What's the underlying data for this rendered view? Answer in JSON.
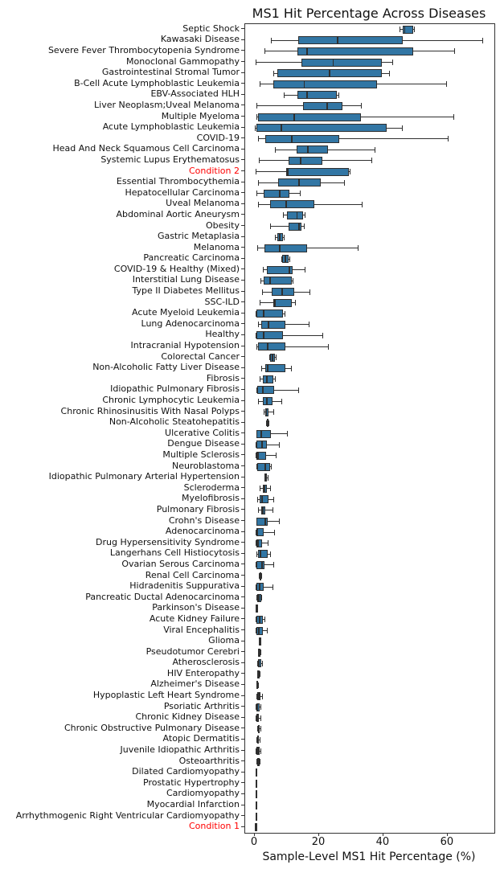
{
  "chart_data": {
    "type": "boxplot-horizontal",
    "title": "MS1 Hit Percentage Across Diseases",
    "xlabel": "Sample-Level MS1 Hit Percentage (%)",
    "x_ticks": [
      0,
      20,
      40,
      60
    ],
    "xlim": [
      -3,
      74.4
    ],
    "grid": false,
    "legend": "none",
    "colors": {
      "box_fill": "#3276a4",
      "box_edge": "#2f2f2f",
      "highlight_label": "#ff0000",
      "label": "#111111"
    },
    "rows": [
      {
        "label": "Septic Shock",
        "whislo": 45.0,
        "q1": 45.9,
        "med": 46.6,
        "q3": 49.3,
        "whishi": 49.5
      },
      {
        "label": "Kawasaki Disease",
        "whislo": 5.0,
        "q1": 13.6,
        "med": 25.8,
        "q3": 46.0,
        "whishi": 70.7
      },
      {
        "label": "Severe Fever Thrombocytopenia Syndrome",
        "whislo": 3.0,
        "q1": 13.3,
        "med": 16.2,
        "q3": 49.2,
        "whishi": 62.0
      },
      {
        "label": "Monoclonal Gammopathy",
        "whislo": 0.3,
        "q1": 14.6,
        "med": 24.4,
        "q3": 39.5,
        "whishi": 42.8
      },
      {
        "label": "Gastrointestinal Stromal Tumor",
        "whislo": 5.7,
        "q1": 6.9,
        "med": 23.3,
        "q3": 39.5,
        "whishi": 41.8
      },
      {
        "label": "B-Cell Acute Lymphoblastic Leukemia",
        "whislo": 1.6,
        "q1": 5.8,
        "med": 15.4,
        "q3": 38.0,
        "whishi": 59.5
      },
      {
        "label": "EBV-Associated HLH",
        "whislo": 9.0,
        "q1": 13.2,
        "med": 16.3,
        "q3": 25.4,
        "whishi": 26.0
      },
      {
        "label": "Liver Neoplasm;Uveal Melanoma",
        "whislo": 0.5,
        "q1": 15.1,
        "med": 22.5,
        "q3": 27.3,
        "whishi": 33.0
      },
      {
        "label": "Multiple Myeloma",
        "whislo": 0.5,
        "q1": 1.0,
        "med": 12.2,
        "q3": 33.0,
        "whishi": 61.8
      },
      {
        "label": "Acute Lymphoblastic Leukemia",
        "whislo": 0.1,
        "q1": 0.5,
        "med": 8.2,
        "q3": 41.0,
        "whishi": 45.7
      },
      {
        "label": "COVID-19",
        "whislo": 1.0,
        "q1": 3.3,
        "med": 11.5,
        "q3": 26.3,
        "whishi": 60.0
      },
      {
        "label": "Head And Neck Squamous Cell Carcinoma",
        "whislo": 6.3,
        "q1": 13.0,
        "med": 16.5,
        "q3": 22.8,
        "whishi": 37.3
      },
      {
        "label": "Systemic Lupus Erythematosus",
        "whislo": 1.3,
        "q1": 10.5,
        "med": 14.3,
        "q3": 21.0,
        "whishi": 36.2
      },
      {
        "label": "Condition 2",
        "whislo": 0.3,
        "q1": 9.8,
        "med": 10.3,
        "q3": 29.3,
        "whishi": 29.6,
        "highlight": true
      },
      {
        "label": "Essential Thrombocythemia",
        "whislo": 1.0,
        "q1": 7.2,
        "med": 13.8,
        "q3": 20.5,
        "whishi": 27.8
      },
      {
        "label": "Hepatocellular Carcinoma",
        "whislo": 0.5,
        "q1": 2.7,
        "med": 7.8,
        "q3": 10.7,
        "whishi": 14.0
      },
      {
        "label": "Uveal Melanoma",
        "whislo": 1.0,
        "q1": 4.8,
        "med": 9.8,
        "q3": 18.5,
        "whishi": 33.3
      },
      {
        "label": "Abdominal Aortic Aneurysm",
        "whislo": 8.7,
        "q1": 10.0,
        "med": 13.1,
        "q3": 15.0,
        "whishi": 15.5
      },
      {
        "label": "Obesity",
        "whislo": 4.8,
        "q1": 10.6,
        "med": 13.7,
        "q3": 14.5,
        "whishi": 15.3
      },
      {
        "label": "Gastric Metaplasia",
        "whislo": 6.2,
        "q1": 7.0,
        "med": 7.8,
        "q3": 8.8,
        "whishi": 9.1
      },
      {
        "label": "Melanoma",
        "whislo": 0.7,
        "q1": 3.0,
        "med": 7.8,
        "q3": 16.3,
        "whishi": 32.0
      },
      {
        "label": "Pancreatic Carcinoma",
        "whislo": 8.3,
        "q1": 8.6,
        "med": 9.5,
        "q3": 10.5,
        "whishi": 10.7
      },
      {
        "label": "COVID-19 & Healthy (Mixed)",
        "whislo": 2.5,
        "q1": 3.8,
        "med": 10.7,
        "q3": 11.8,
        "whishi": 15.5
      },
      {
        "label": "Interstitial Lung Disease",
        "whislo": 1.8,
        "q1": 2.8,
        "med": 4.8,
        "q3": 11.5,
        "whishi": 11.7
      },
      {
        "label": "Type II Diabetes Mellitus",
        "whislo": 2.2,
        "q1": 5.2,
        "med": 8.5,
        "q3": 12.2,
        "whishi": 17.1
      },
      {
        "label": "SSC-ILD",
        "whislo": 1.4,
        "q1": 5.8,
        "med": 6.3,
        "q3": 11.4,
        "whishi": 12.5
      },
      {
        "label": "Acute Myeloid Leukemia",
        "whislo": 0.2,
        "q1": 0.4,
        "med": 2.8,
        "q3": 8.7,
        "whishi": 9.2
      },
      {
        "label": "Lung Adenocarcinoma",
        "whislo": 1.0,
        "q1": 2.0,
        "med": 4.2,
        "q3": 9.5,
        "whishi": 16.8
      },
      {
        "label": "Healthy",
        "whislo": 0.2,
        "q1": 0.6,
        "med": 2.8,
        "q3": 8.8,
        "whishi": 21.0
      },
      {
        "label": "Intracranial Hypotension",
        "whislo": 0.5,
        "q1": 1.0,
        "med": 4.0,
        "q3": 9.5,
        "whishi": 22.8
      },
      {
        "label": "Colorectal Cancer",
        "whislo": 4.4,
        "q1": 4.8,
        "med": 5.5,
        "q3": 6.3,
        "whishi": 6.6
      },
      {
        "label": "Non-Alcoholic Fatty Liver Disease",
        "whislo": 2.0,
        "q1": 3.2,
        "med": 4.0,
        "q3": 9.5,
        "whishi": 11.3
      },
      {
        "label": "Fibrosis",
        "whislo": 1.5,
        "q1": 2.5,
        "med": 3.8,
        "q3": 5.8,
        "whishi": 6.2
      },
      {
        "label": "Idiopathic Pulmonary Fibrosis",
        "whislo": 0.5,
        "q1": 0.7,
        "med": 2.5,
        "q3": 6.0,
        "whishi": 13.5
      },
      {
        "label": "Chronic Lymphocytic Leukemia",
        "whislo": 1.0,
        "q1": 2.5,
        "med": 3.8,
        "q3": 5.5,
        "whishi": 8.2
      },
      {
        "label": "Chronic Rhinosinusitis With Nasal Polyps",
        "whislo": 2.8,
        "q1": 3.2,
        "med": 3.6,
        "q3": 4.3,
        "whishi": 5.8
      },
      {
        "label": "Non-Alcoholic Steatohepatitis",
        "whislo": 3.6,
        "q1": 3.7,
        "med": 3.9,
        "q3": 4.2,
        "whishi": 4.3
      },
      {
        "label": "Ulcerative Colitis",
        "whislo": 0.4,
        "q1": 0.6,
        "med": 2.0,
        "q3": 5.0,
        "whishi": 10.0
      },
      {
        "label": "Dengue Disease",
        "whislo": 0.3,
        "q1": 0.5,
        "med": 2.2,
        "q3": 3.8,
        "whishi": 7.5
      },
      {
        "label": "Multiple Sclerosis",
        "whislo": 0.3,
        "q1": 0.5,
        "med": 1.0,
        "q3": 3.5,
        "whishi": 6.5
      },
      {
        "label": "Neuroblastoma",
        "whislo": 0.4,
        "q1": 0.8,
        "med": 3.2,
        "q3": 4.8,
        "whishi": 5.0
      },
      {
        "label": "Idiopathic Pulmonary Arterial Hypertension",
        "whislo": 2.9,
        "q1": 3.1,
        "med": 3.4,
        "q3": 3.8,
        "whishi": 3.9
      },
      {
        "label": "Scleroderma",
        "whislo": 1.5,
        "q1": 2.5,
        "med": 3.0,
        "q3": 3.8,
        "whishi": 4.8
      },
      {
        "label": "Myelofibrosis",
        "whislo": 0.7,
        "q1": 1.5,
        "med": 2.2,
        "q3": 4.2,
        "whishi": 5.8
      },
      {
        "label": "Pulmonary Fibrosis",
        "whislo": 1.0,
        "q1": 2.0,
        "med": 2.5,
        "q3": 3.2,
        "whishi": 5.5
      },
      {
        "label": "Crohn's Disease",
        "whislo": 0.4,
        "q1": 0.6,
        "med": 3.2,
        "q3": 4.0,
        "whishi": 7.5
      },
      {
        "label": "Adenocarcinoma",
        "whislo": 0.3,
        "q1": 0.5,
        "med": 0.9,
        "q3": 2.8,
        "whishi": 6.0
      },
      {
        "label": "Drug Hypersensitivity Syndrome",
        "whislo": 0.3,
        "q1": 0.5,
        "med": 1.0,
        "q3": 2.2,
        "whishi": 4.0
      },
      {
        "label": "Langerhans Cell Histiocytosis",
        "whislo": 0.5,
        "q1": 1.0,
        "med": 1.8,
        "q3": 4.0,
        "whishi": 4.8
      },
      {
        "label": "Ovarian Serous Carcinoma",
        "whislo": 0.3,
        "q1": 0.5,
        "med": 2.2,
        "q3": 3.0,
        "whishi": 5.8
      },
      {
        "label": "Renal Cell Carcinoma",
        "whislo": 1.3,
        "q1": 1.5,
        "med": 1.8,
        "q3": 2.0,
        "whishi": 2.1
      },
      {
        "label": "Hidradenitis Suppurativa",
        "whislo": 0.3,
        "q1": 0.5,
        "med": 1.5,
        "q3": 2.8,
        "whishi": 5.5
      },
      {
        "label": "Pancreatic Ductal Adenocarcinoma",
        "whislo": 0.6,
        "q1": 0.8,
        "med": 1.3,
        "q3": 2.0,
        "whishi": 2.1
      },
      {
        "label": "Parkinson's Disease",
        "whislo": 0.3,
        "q1": 0.4,
        "med": 0.5,
        "q3": 0.6,
        "whishi": 0.7
      },
      {
        "label": "Acute Kidney Failure",
        "whislo": 0.2,
        "q1": 0.5,
        "med": 1.5,
        "q3": 2.5,
        "whishi": 3.0
      },
      {
        "label": "Viral Encephalitis",
        "whislo": 0.2,
        "q1": 0.5,
        "med": 1.2,
        "q3": 2.5,
        "whishi": 3.8
      },
      {
        "label": "Glioma",
        "whislo": 1.3,
        "q1": 1.4,
        "med": 1.5,
        "q3": 1.6,
        "whishi": 1.7
      },
      {
        "label": "Pseudotumor Cerebri",
        "whislo": 0.9,
        "q1": 1.0,
        "med": 1.3,
        "q3": 1.7,
        "whishi": 1.8
      },
      {
        "label": "Atherosclerosis",
        "whislo": 0.8,
        "q1": 1.0,
        "med": 1.4,
        "q3": 2.0,
        "whishi": 2.2
      },
      {
        "label": "HIV Enteropathy",
        "whislo": 0.7,
        "q1": 0.8,
        "med": 1.1,
        "q3": 1.5,
        "whishi": 1.6
      },
      {
        "label": "Alzheimer's Disease",
        "whislo": 0.5,
        "q1": 0.6,
        "med": 0.7,
        "q3": 0.8,
        "whishi": 0.9
      },
      {
        "label": "Hypoplastic Left Heart Syndrome",
        "whislo": 0.4,
        "q1": 0.8,
        "med": 1.2,
        "q3": 1.8,
        "whishi": 2.2
      },
      {
        "label": "Psoriatic Arthritis",
        "whislo": 0.3,
        "q1": 0.5,
        "med": 0.9,
        "q3": 1.5,
        "whishi": 1.7
      },
      {
        "label": "Chronic Kidney Disease",
        "whislo": 0.3,
        "q1": 0.5,
        "med": 0.8,
        "q3": 1.3,
        "whishi": 1.8
      },
      {
        "label": "Chronic Obstructive Pulmonary Disease",
        "whislo": 0.8,
        "q1": 1.0,
        "med": 1.2,
        "q3": 1.6,
        "whishi": 1.7
      },
      {
        "label": "Atopic Dermatitis",
        "whislo": 0.6,
        "q1": 0.8,
        "med": 1.0,
        "q3": 1.3,
        "whishi": 1.4
      },
      {
        "label": "Juvenile Idiopathic Arthritis",
        "whislo": 0.3,
        "q1": 0.5,
        "med": 1.0,
        "q3": 1.5,
        "whishi": 1.8
      },
      {
        "label": "Osteoarthritis",
        "whislo": 0.6,
        "q1": 0.8,
        "med": 1.1,
        "q3": 1.4,
        "whishi": 1.5
      },
      {
        "label": "Dilated Cardiomyopathy",
        "whislo": 0.2,
        "q1": 0.25,
        "med": 0.35,
        "q3": 0.45,
        "whishi": 0.5
      },
      {
        "label": "Prostatic Hypertrophy",
        "whislo": 0.2,
        "q1": 0.25,
        "med": 0.35,
        "q3": 0.45,
        "whishi": 0.5
      },
      {
        "label": "Cardiomyopathy",
        "whislo": 0.2,
        "q1": 0.25,
        "med": 0.35,
        "q3": 0.45,
        "whishi": 0.5
      },
      {
        "label": "Myocardial Infarction",
        "whislo": 0.2,
        "q1": 0.25,
        "med": 0.35,
        "q3": 0.45,
        "whishi": 0.5
      },
      {
        "label": "Arrhythmogenic Right Ventricular Cardiomyopathy",
        "whislo": 0.2,
        "q1": 0.25,
        "med": 0.35,
        "q3": 0.45,
        "whishi": 0.5
      },
      {
        "label": "Condition 1",
        "whislo": 0.1,
        "q1": 0.2,
        "med": 0.3,
        "q3": 0.4,
        "whishi": 0.5,
        "highlight": true
      }
    ]
  }
}
